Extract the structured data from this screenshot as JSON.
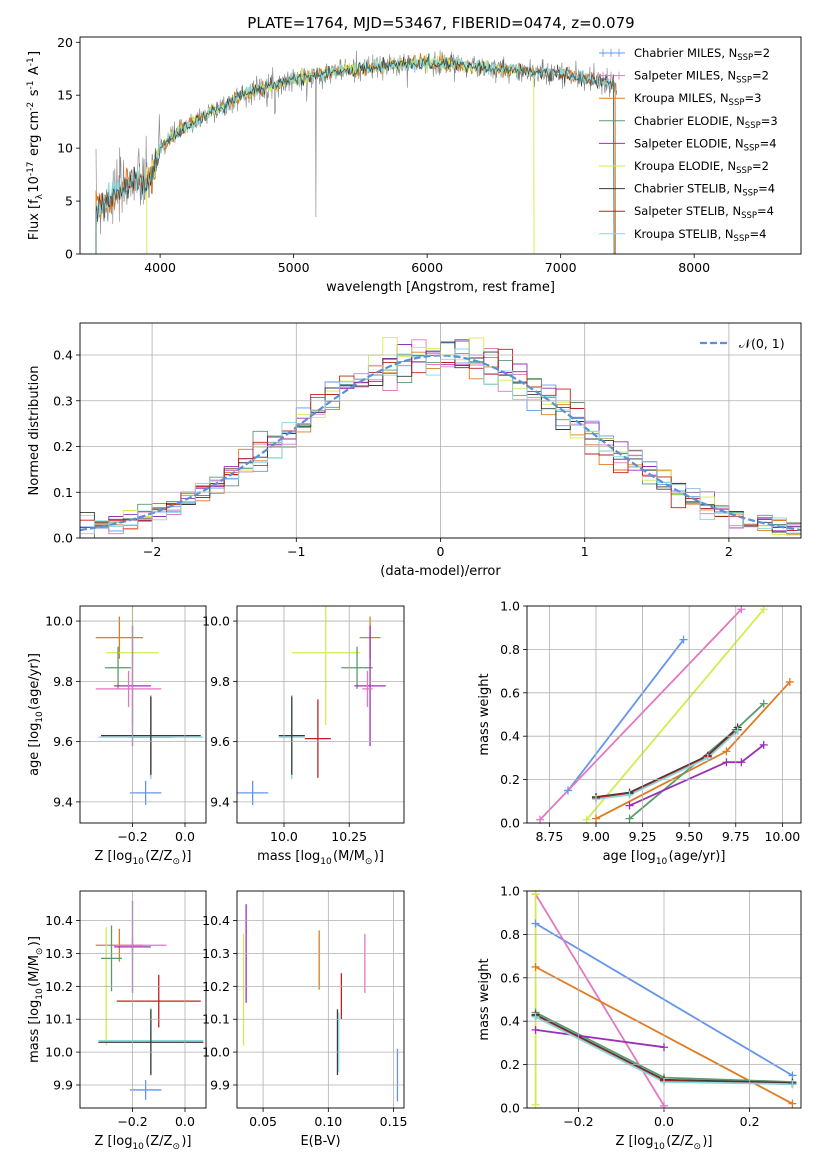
{
  "figure": {
    "title": "PLATE=1764, MJD=53467, FIBERID=0474, z=0.079"
  },
  "legend": [
    {
      "label": "Chabrier MILES, N$_{SSP}$=2",
      "display": "Chabrier MILES, N",
      "sub": "SSP",
      "tail": "=2",
      "color": "#6495ed"
    },
    {
      "label": "Salpeter MILES, N$_{SSP}$=2",
      "display": "Salpeter MILES, N",
      "sub": "SSP",
      "tail": "=2",
      "color": "#e377c2"
    },
    {
      "label": "Kroupa MILES, N$_{SSP}$=3",
      "display": "Kroupa MILES, N",
      "sub": "SSP",
      "tail": "=3",
      "color": "#e07b22"
    },
    {
      "label": "Chabrier ELODIE, N$_{SSP}$=3",
      "display": "Chabrier ELODIE, N",
      "sub": "SSP",
      "tail": "=3",
      "color": "#5a9a6e"
    },
    {
      "label": "Salpeter ELODIE, N$_{SSP}$=4",
      "display": "Salpeter ELODIE, N",
      "sub": "SSP",
      "tail": "=4",
      "color": "#9b30b8"
    },
    {
      "label": "Kroupa ELODIE, N$_{SSP}$=2",
      "display": "Kroupa ELODIE, N",
      "sub": "SSP",
      "tail": "=2",
      "color": "#d4ec4c"
    },
    {
      "label": "Chabrier STELIB, N$_{SSP}$=4",
      "display": "Chabrier STELIB, N",
      "sub": "SSP",
      "tail": "=4",
      "color": "#3a3a3a"
    },
    {
      "label": "Salpeter STELIB, N$_{SSP}$=4",
      "display": "Salpeter STELIB, N",
      "sub": "SSP",
      "tail": "=4",
      "color": "#c0201f"
    },
    {
      "label": "Kroupa STELIB, N$_{SSP}$=4",
      "display": "Kroupa STELIB, N",
      "sub": "SSP",
      "tail": "=4",
      "color": "#86d9df"
    }
  ],
  "chart_data": [
    {
      "id": "spectrum",
      "type": "line",
      "xlabel": "wavelength [Angstrom, rest frame]",
      "ylabel": "Flux [f$_\\lambda$10$^{-17}$ erg cm$^{-2}$ s$^{-1}$ A$^{-1}$]",
      "xlim": [
        3400,
        8800
      ],
      "ylim": [
        0,
        20.5
      ],
      "xticks": [
        4000,
        5000,
        6000,
        7000,
        8000
      ],
      "yticks": [
        0,
        5,
        10,
        15,
        20
      ],
      "grid": false,
      "legend_placement": "right",
      "observed_envelope": {
        "x": [
          3520,
          3600,
          3700,
          3800,
          3900,
          3950,
          4000,
          4100,
          4200,
          4300,
          4400,
          4500,
          4600,
          4800,
          5000,
          5200,
          5400,
          5600,
          5800,
          6000,
          6200,
          6400,
          6600,
          6800,
          7000,
          7200,
          7300,
          7400
        ],
        "y": [
          4.5,
          5.0,
          6.0,
          7.2,
          6.5,
          8.0,
          10.0,
          11.2,
          12.0,
          12.8,
          13.6,
          14.0,
          15.0,
          15.8,
          16.5,
          17.0,
          17.4,
          17.6,
          17.9,
          18.0,
          18.0,
          17.6,
          17.4,
          17.2,
          17.0,
          16.6,
          16.3,
          16.0
        ]
      },
      "model_cutoffs": [
        {
          "series": "Kroupa MILES",
          "x_min": 3520,
          "x_max": 7410
        },
        {
          "series": "Kroupa ELODIE",
          "x_min": 3900,
          "x_max": 6800
        },
        {
          "series": "Chabrier STELIB",
          "x_min": 3520,
          "x_max": 7400
        }
      ]
    },
    {
      "id": "residual-histogram",
      "type": "bar",
      "xlabel": "(data-model)/error",
      "ylabel": "Normed distribution",
      "xlim": [
        -2.5,
        2.5
      ],
      "ylim": [
        0,
        0.47
      ],
      "xticks": [
        -2,
        -1,
        0,
        1,
        2
      ],
      "yticks": [
        0,
        0.1,
        0.2,
        0.3,
        0.4
      ],
      "grid": true,
      "bin_width": 0.1,
      "reference": {
        "name": "$\\mathcal{N}(0,1)$",
        "display": "𝒩(0, 1)",
        "mean": 0,
        "sigma": 1,
        "color": "#5b8fd6"
      },
      "legend_placement": "top-right"
    },
    {
      "id": "age-vs-Z",
      "type": "scatter",
      "xlabel": "Z [log$_{10}$(Z/Z$_\\odot$)]",
      "ylabel": "age  [log$_{10}$(age/yr)]",
      "xlim": [
        -0.4,
        0.08
      ],
      "ylim": [
        9.33,
        10.05
      ],
      "xticks": [
        -0.2,
        0.0
      ],
      "yticks": [
        9.4,
        9.6,
        9.8,
        10.0
      ],
      "grid": true,
      "points": [
        {
          "series": "Kroupa MILES",
          "x": -0.25,
          "y": 9.945,
          "xerr": 0.09,
          "yerr": 0.07
        },
        {
          "series": "Kroupa ELODIE",
          "x": -0.2,
          "y": 9.895,
          "xerr": 0.1,
          "yerr": 0.24
        },
        {
          "series": "Chabrier ELODIE",
          "x": -0.255,
          "y": 9.845,
          "xerr": 0.05,
          "yerr": 0.07
        },
        {
          "series": "Salpeter ELODIE",
          "x": -0.2,
          "y": 9.785,
          "xerr": 0.07,
          "yerr": 0.2
        },
        {
          "series": "Salpeter MILES",
          "x": -0.215,
          "y": 9.775,
          "xerr": 0.125,
          "yerr": 0.06
        },
        {
          "series": "Salpeter STELIB",
          "x": -0.13,
          "y": 9.615,
          "xerr": 0.08,
          "yerr": 0.13
        },
        {
          "series": "Kroupa STELIB",
          "x": -0.13,
          "y": 9.615,
          "xerr": 0.2,
          "yerr": 0.14
        },
        {
          "series": "Chabrier STELIB",
          "x": -0.13,
          "y": 9.62,
          "xerr": 0.19,
          "yerr": 0.13
        },
        {
          "series": "Chabrier MILES",
          "x": -0.15,
          "y": 9.43,
          "xerr": 0.06,
          "yerr": 0.04
        }
      ]
    },
    {
      "id": "age-vs-mass",
      "type": "scatter",
      "xlabel": "mass [log$_{10}$(M/M$_\\odot$)]",
      "ylabel": "",
      "xlim": [
        9.82,
        10.46
      ],
      "ylim": [
        9.33,
        10.05
      ],
      "xticks": [
        10.0,
        10.25
      ],
      "yticks": [
        9.4,
        9.6,
        9.8,
        10.0
      ],
      "grid": true,
      "points": [
        {
          "series": "Kroupa MILES",
          "x": 10.33,
          "y": 9.945,
          "xerr": 0.04,
          "yerr": 0.07
        },
        {
          "series": "Kroupa ELODIE",
          "x": 10.16,
          "y": 9.895,
          "xerr": 0.13,
          "yerr": 0.24
        },
        {
          "series": "Chabrier ELODIE",
          "x": 10.28,
          "y": 9.845,
          "xerr": 0.06,
          "yerr": 0.07
        },
        {
          "series": "Salpeter ELODIE",
          "x": 10.33,
          "y": 9.785,
          "xerr": 0.06,
          "yerr": 0.2
        },
        {
          "series": "Salpeter MILES",
          "x": 10.32,
          "y": 9.775,
          "xerr": 0.02,
          "yerr": 0.06
        },
        {
          "series": "Salpeter STELIB",
          "x": 10.13,
          "y": 9.61,
          "xerr": 0.05,
          "yerr": 0.13
        },
        {
          "series": "Kroupa STELIB",
          "x": 10.03,
          "y": 9.615,
          "xerr": 0.05,
          "yerr": 0.14
        },
        {
          "series": "Chabrier STELIB",
          "x": 10.03,
          "y": 9.62,
          "xerr": 0.05,
          "yerr": 0.13
        },
        {
          "series": "Chabrier MILES",
          "x": 9.88,
          "y": 9.43,
          "xerr": 0.06,
          "yerr": 0.04
        }
      ]
    },
    {
      "id": "mass-weight-vs-age",
      "type": "line",
      "xlabel": "age  [log$_{10}$(age/yr)]",
      "ylabel": "mass weight",
      "xlim": [
        8.63,
        10.1
      ],
      "ylim": [
        0,
        1
      ],
      "xticks": [
        8.75,
        9.0,
        9.25,
        9.5,
        9.75,
        10.0
      ],
      "yticks": [
        0,
        0.2,
        0.4,
        0.6,
        0.8,
        1.0
      ],
      "grid": true,
      "series": [
        {
          "name": "Chabrier MILES",
          "x": [
            8.85,
            9.47
          ],
          "y": [
            0.15,
            0.845
          ]
        },
        {
          "name": "Salpeter MILES",
          "x": [
            8.7,
            9.78
          ],
          "y": [
            0.015,
            0.985
          ]
        },
        {
          "name": "Kroupa MILES",
          "x": [
            9.0,
            9.7,
            10.04
          ],
          "y": [
            0.02,
            0.33,
            0.65
          ]
        },
        {
          "name": "Chabrier ELODIE",
          "x": [
            9.18,
            9.75,
            9.9
          ],
          "y": [
            0.02,
            0.43,
            0.55
          ]
        },
        {
          "name": "Salpeter ELODIE",
          "x": [
            9.18,
            9.7,
            9.78,
            9.9
          ],
          "y": [
            0.08,
            0.28,
            0.28,
            0.36
          ]
        },
        {
          "name": "Kroupa ELODIE",
          "x": [
            8.95,
            9.9
          ],
          "y": [
            0.015,
            0.985
          ]
        },
        {
          "name": "Chabrier STELIB",
          "x": [
            9.0,
            9.18,
            9.6,
            9.76
          ],
          "y": [
            0.12,
            0.14,
            0.31,
            0.44
          ]
        },
        {
          "name": "Salpeter STELIB",
          "x": [
            9.0,
            9.18,
            9.6,
            9.76
          ],
          "y": [
            0.115,
            0.135,
            0.305,
            0.43
          ]
        },
        {
          "name": "Kroupa STELIB",
          "x": [
            9.0,
            9.18,
            9.6,
            9.76
          ],
          "y": [
            0.11,
            0.13,
            0.3,
            0.425
          ]
        }
      ]
    },
    {
      "id": "mass-vs-Z",
      "type": "scatter",
      "xlabel": "Z [log$_{10}$(Z/Z$_\\odot$)]",
      "ylabel": "mass [log$_{10}$(M/M$_\\odot$)]",
      "xlim": [
        -0.4,
        0.08
      ],
      "ylim": [
        9.83,
        10.49
      ],
      "xticks": [
        -0.2,
        0.0
      ],
      "yticks": [
        9.9,
        10.0,
        10.1,
        10.2,
        10.3,
        10.4
      ],
      "grid": true,
      "points": [
        {
          "series": "Kroupa MILES",
          "x": -0.25,
          "y": 10.325,
          "xerr": 0.09,
          "yerr": 0.05
        },
        {
          "series": "Salpeter MILES",
          "x": -0.2,
          "y": 10.325,
          "xerr": 0.13,
          "yerr": 0.02
        },
        {
          "series": "Salpeter ELODIE",
          "x": -0.2,
          "y": 10.32,
          "xerr": 0.07,
          "yerr": 0.14
        },
        {
          "series": "Kroupa ELODIE",
          "x": -0.3,
          "y": 10.2,
          "xerr": 0.01,
          "yerr": 0.18
        },
        {
          "series": "Chabrier ELODIE",
          "x": -0.28,
          "y": 10.285,
          "xerr": 0.04,
          "yerr": 0.1
        },
        {
          "series": "Salpeter STELIB",
          "x": -0.1,
          "y": 10.155,
          "xerr": 0.16,
          "yerr": 0.08
        },
        {
          "series": "Kroupa STELIB",
          "x": -0.13,
          "y": 10.035,
          "xerr": 0.2,
          "yerr": 0.1
        },
        {
          "series": "Chabrier STELIB",
          "x": -0.13,
          "y": 10.03,
          "xerr": 0.2,
          "yerr": 0.1
        },
        {
          "series": "Chabrier MILES",
          "x": -0.15,
          "y": 9.885,
          "xerr": 0.06,
          "yerr": 0.03
        }
      ]
    },
    {
      "id": "mass-vs-ebv",
      "type": "scatter",
      "xlabel": "E(B-V)",
      "ylabel": "",
      "xlim": [
        0.03,
        0.158
      ],
      "ylim": [
        9.83,
        10.49
      ],
      "xticks": [
        0.05,
        0.1,
        0.15
      ],
      "yticks": [
        9.9,
        10.0,
        10.1,
        10.2,
        10.3,
        10.4
      ],
      "grid": true,
      "points": [
        {
          "series": "Salpeter ELODIE",
          "x": 0.037,
          "y": 10.3,
          "yerr": 0.15
        },
        {
          "series": "Kroupa ELODIE",
          "x": 0.035,
          "y": 10.19,
          "yerr": 0.17
        },
        {
          "series": "Kroupa MILES",
          "x": 0.093,
          "y": 10.28,
          "yerr": 0.09
        },
        {
          "series": "Salpeter STELIB",
          "x": 0.11,
          "y": 10.17,
          "yerr": 0.07
        },
        {
          "series": "Chabrier STELIB",
          "x": 0.107,
          "y": 10.03,
          "yerr": 0.1
        },
        {
          "series": "Kroupa STELIB",
          "x": 0.108,
          "y": 10.03,
          "yerr": 0.09
        },
        {
          "series": "Salpeter MILES",
          "x": 0.128,
          "y": 10.27,
          "yerr": 0.09
        },
        {
          "series": "Chabrier MILES",
          "x": 0.153,
          "y": 9.93,
          "yerr": 0.08
        }
      ]
    },
    {
      "id": "mass-weight-vs-Z",
      "type": "line",
      "xlabel": "Z [log$_{10}$(Z/Z$_\\odot$)]",
      "ylabel": "mass weight",
      "xlim": [
        -0.32,
        0.32
      ],
      "ylim": [
        0,
        1
      ],
      "xticks": [
        -0.2,
        0.0,
        0.2
      ],
      "yticks": [
        0,
        0.2,
        0.4,
        0.6,
        0.8,
        1.0
      ],
      "grid": true,
      "series": [
        {
          "name": "Chabrier MILES",
          "x": [
            -0.3,
            0.3
          ],
          "y": [
            0.85,
            0.15
          ]
        },
        {
          "name": "Salpeter MILES",
          "x": [
            -0.3,
            0.0
          ],
          "y": [
            0.985,
            0.01
          ]
        },
        {
          "name": "Kroupa MILES",
          "x": [
            -0.3,
            0.3
          ],
          "y": [
            0.65,
            0.02
          ]
        },
        {
          "name": "Chabrier ELODIE",
          "x": [
            -0.3,
            0.0,
            0.3
          ],
          "y": [
            0.44,
            0.14,
            0.12
          ]
        },
        {
          "name": "Salpeter ELODIE",
          "x": [
            -0.3,
            0.0
          ],
          "y": [
            0.36,
            0.28
          ]
        },
        {
          "name": "Kroupa ELODIE",
          "x": [
            -0.3,
            -0.3
          ],
          "y": [
            0.015,
            0.985
          ]
        },
        {
          "name": "Chabrier STELIB",
          "x": [
            -0.3,
            0.0,
            0.3
          ],
          "y": [
            0.43,
            0.13,
            0.115
          ]
        },
        {
          "name": "Salpeter STELIB",
          "x": [
            -0.3,
            0.0,
            0.3
          ],
          "y": [
            0.425,
            0.125,
            0.11
          ]
        },
        {
          "name": "Kroupa STELIB",
          "x": [
            -0.3,
            0.0,
            0.3
          ],
          "y": [
            0.42,
            0.12,
            0.11
          ]
        }
      ]
    }
  ]
}
